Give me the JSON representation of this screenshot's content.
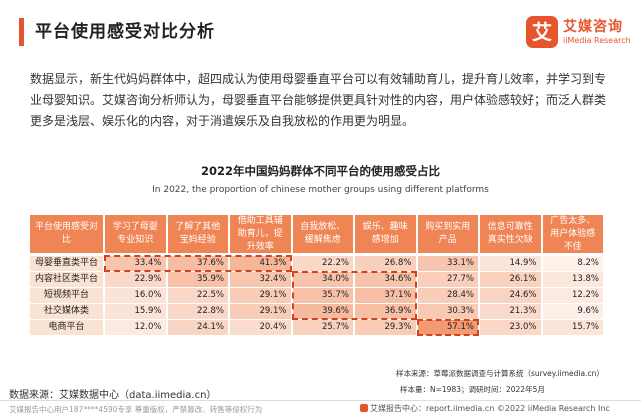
{
  "header": {
    "title": "平台使用感受对比分析",
    "logo_mark": "艾",
    "logo_cn": "艾媒咨询",
    "logo_en": "iiMedia Research"
  },
  "paragraph": "数据显示，新生代妈妈群体中，超四成认为使用母婴垂直平台可以有效辅助育儿，提升育儿效率，并学习到专业母婴知识。艾媒咨询分析师认为，母婴垂直平台能够提供更具针对性的内容，用户体验感较好；而泛人群类更多是浅层、娱乐化的内容，对于消遣娱乐及自我放松的作用更为明显。",
  "chart_data": {
    "type": "table",
    "title": "2022年中国妈妈群体不同平台的使用感受占比",
    "subtitle": "In 2022, the proportion of chinese mother groups using different platforms",
    "corner_header": "平台使用感受对比",
    "columns": [
      "学习了母婴专业知识",
      "了解了其他宝妈经验",
      "借助工具辅助育儿，提升效率",
      "自我放松、缓解焦虑",
      "娱乐、趣味感增加",
      "购买到实用产品",
      "信息可靠性真实性欠缺",
      "广告太多、用户体验感不佳"
    ],
    "rows": [
      "母婴垂直类平台",
      "内容社区类平台",
      "短视频平台",
      "社交媒体类",
      "电商平台"
    ],
    "values": [
      [
        33.4,
        37.6,
        41.3,
        22.2,
        26.8,
        33.1,
        14.9,
        8.2
      ],
      [
        22.9,
        35.9,
        32.4,
        34.0,
        34.6,
        27.7,
        26.1,
        13.8
      ],
      [
        16.0,
        22.5,
        29.1,
        35.7,
        37.1,
        28.4,
        24.6,
        12.2
      ],
      [
        15.9,
        22.8,
        29.1,
        39.6,
        36.9,
        30.3,
        21.3,
        9.6
      ],
      [
        12.0,
        24.1,
        20.4,
        25.7,
        29.3,
        57.1,
        23.0,
        15.7
      ]
    ],
    "value_suffix": "%",
    "highlights": [
      {
        "rows": [
          0,
          0
        ],
        "cols": [
          0,
          2
        ]
      },
      {
        "rows": [
          1,
          3
        ],
        "cols": [
          3,
          4
        ]
      },
      {
        "rows": [
          4,
          4
        ],
        "cols": [
          5,
          5
        ]
      }
    ],
    "colors": {
      "header": "#ef8455",
      "row_label_bg": "#fbe3d4",
      "heat_low": "#fdf1ea",
      "heat_high": "#f29b73",
      "highlight_border": "#d5401f"
    }
  },
  "footer": {
    "source": "数据来源：艾媒数据中心（data.iimedia.cn）",
    "sample": "样本来源：草莓派数据调查与计算系统（survey.iimedia.cn）",
    "survey": "样本量：N=1983；调研时间：2022年5月",
    "left_notice": "艾媒报告中心用户187****4590专享 尊重版权，严禁篡改、转售等侵权行为",
    "right_notice": "艾媒报告中心：report.iimedia.cn  ©2022  iiMedia Research  Inc"
  }
}
